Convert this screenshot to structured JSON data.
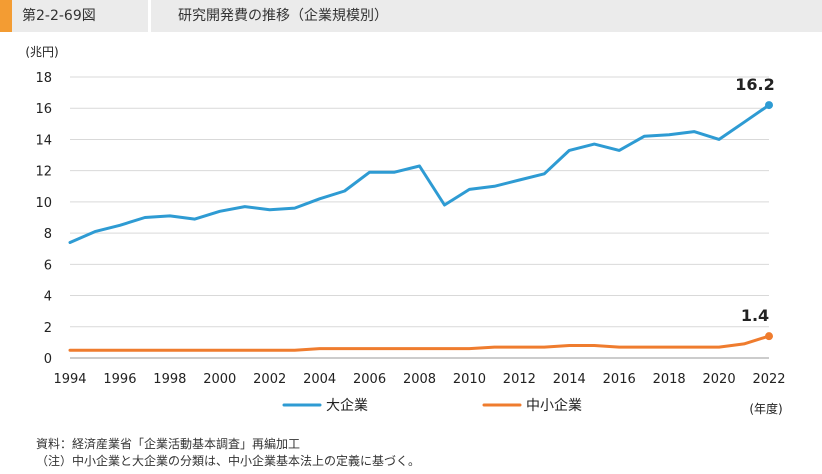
{
  "header": {
    "figure_label": "第2-2-69図",
    "title": "研究開発費の推移（企業規模別）"
  },
  "chart_data": {
    "type": "line",
    "ylabel": "(兆円)",
    "xlabel": "(年度)",
    "ylim": [
      0,
      18
    ],
    "yticks": [
      "0",
      "2",
      "4",
      "6",
      "8",
      "10",
      "12",
      "14",
      "16",
      "18"
    ],
    "xticks": [
      "1994",
      "1996",
      "1998",
      "2000",
      "2002",
      "2004",
      "2006",
      "2008",
      "2010",
      "2012",
      "2014",
      "2016",
      "2018",
      "2020",
      "2022"
    ],
    "x": [
      1994,
      1995,
      1996,
      1997,
      1998,
      1999,
      2000,
      2001,
      2002,
      2003,
      2004,
      2005,
      2006,
      2007,
      2008,
      2009,
      2010,
      2011,
      2012,
      2013,
      2014,
      2015,
      2016,
      2017,
      2018,
      2019,
      2020,
      2021,
      2022
    ],
    "grid": "horizontal",
    "legend_position": "bottom",
    "series": [
      {
        "name": "大企業",
        "color": "#2e9bd3",
        "values": [
          7.4,
          8.1,
          8.5,
          9.0,
          9.1,
          8.9,
          9.4,
          9.7,
          9.5,
          9.6,
          10.2,
          10.7,
          11.9,
          11.9,
          12.3,
          9.8,
          10.8,
          11.0,
          11.4,
          11.8,
          13.3,
          13.7,
          13.3,
          14.2,
          14.3,
          14.5,
          14.0,
          15.1,
          16.2
        ],
        "end_label": "16.2"
      },
      {
        "name": "中小企業",
        "color": "#ef7c2e",
        "values": [
          0.5,
          0.5,
          0.5,
          0.5,
          0.5,
          0.5,
          0.5,
          0.5,
          0.5,
          0.5,
          0.6,
          0.6,
          0.6,
          0.6,
          0.6,
          0.6,
          0.6,
          0.7,
          0.7,
          0.7,
          0.8,
          0.8,
          0.7,
          0.7,
          0.7,
          0.7,
          0.7,
          0.9,
          1.4
        ],
        "end_label": "1.4"
      }
    ]
  },
  "notes": {
    "source": "資料：経済産業省「企業活動基本調査」再編加工",
    "note": "（注）中小企業と大企業の分類は、中小企業基本法上の定義に基づく。"
  }
}
